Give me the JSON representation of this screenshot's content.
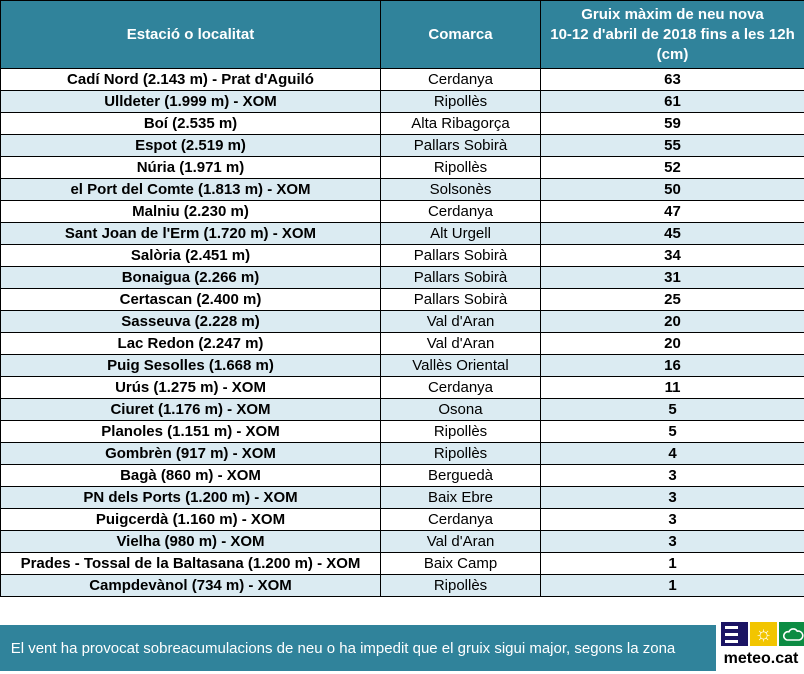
{
  "table": {
    "headers": [
      "Estació o localitat",
      "Comarca",
      "Gruix màxim de neu nova\n10-12 d'abril de 2018 fins a les 12h\n(cm)"
    ],
    "rows": [
      {
        "station": "Cadí Nord (2.143 m) - Prat d'Aguiló",
        "comarca": "Cerdanya",
        "value": "63"
      },
      {
        "station": "Ulldeter (1.999 m) - XOM",
        "comarca": "Ripollès",
        "value": "61"
      },
      {
        "station": "Boí (2.535 m)",
        "comarca": "Alta Ribagorça",
        "value": "59"
      },
      {
        "station": "Espot (2.519 m)",
        "comarca": "Pallars Sobirà",
        "value": "55"
      },
      {
        "station": "Núria (1.971 m)",
        "comarca": "Ripollès",
        "value": "52"
      },
      {
        "station": "el Port del Comte (1.813 m) - XOM",
        "comarca": "Solsonès",
        "value": "50"
      },
      {
        "station": "Malniu (2.230 m)",
        "comarca": "Cerdanya",
        "value": "47"
      },
      {
        "station": "Sant Joan de l'Erm (1.720 m) - XOM",
        "comarca": "Alt Urgell",
        "value": "45"
      },
      {
        "station": "Salòria (2.451 m)",
        "comarca": "Pallars Sobirà",
        "value": "34"
      },
      {
        "station": "Bonaigua (2.266 m)",
        "comarca": "Pallars Sobirà",
        "value": "31"
      },
      {
        "station": "Certascan (2.400 m)",
        "comarca": "Pallars Sobirà",
        "value": "25"
      },
      {
        "station": "Sasseuva (2.228 m)",
        "comarca": "Val d'Aran",
        "value": "20"
      },
      {
        "station": "Lac Redon (2.247 m)",
        "comarca": "Val d'Aran",
        "value": "20"
      },
      {
        "station": "Puig Sesolles (1.668 m)",
        "comarca": "Vallès Oriental",
        "value": "16"
      },
      {
        "station": "Urús (1.275 m) - XOM",
        "comarca": "Cerdanya",
        "value": "11"
      },
      {
        "station": "Ciuret (1.176 m) - XOM",
        "comarca": "Osona",
        "value": "5"
      },
      {
        "station": "Planoles (1.151 m) - XOM",
        "comarca": "Ripollès",
        "value": "5"
      },
      {
        "station": "Gombrèn (917 m) - XOM",
        "comarca": "Ripollès",
        "value": "4"
      },
      {
        "station": "Bagà (860 m) - XOM",
        "comarca": "Berguedà",
        "value": "3"
      },
      {
        "station": "PN dels Ports (1.200 m) - XOM",
        "comarca": "Baix Ebre",
        "value": "3"
      },
      {
        "station": "Puigcerdà (1.160 m) - XOM",
        "comarca": "Cerdanya",
        "value": "3"
      },
      {
        "station": "Vielha (980 m) - XOM",
        "comarca": "Val d'Aran",
        "value": "3"
      },
      {
        "station": "Prades - Tossal de la Baltasana (1.200 m) - XOM",
        "comarca": "Baix Camp",
        "value": "1"
      },
      {
        "station": "Campdevànol (734 m) - XOM",
        "comarca": "Ripollès",
        "value": "1"
      }
    ]
  },
  "footer": {
    "note": "El vent ha provocat sobreacumulacions de neu o ha impedit que el gruix sigui major, segons la zona",
    "logo": {
      "label": "meteo.cat",
      "icons": [
        "menu-lines-icon",
        "sun-icon",
        "cloud-icon"
      ],
      "sun_glyph": "☼"
    }
  },
  "colors": {
    "header_teal": "#30839B",
    "row_alt_blue": "#DBEBF2",
    "row_white": "#ffffff",
    "border_black": "#000000",
    "logo_navy": "#1B1464",
    "logo_yellow": "#F2C500",
    "logo_green": "#0C8C43"
  },
  "chart_data": {
    "type": "table",
    "title": "Gruix màxim de neu nova 10-12 d'abril de 2018 fins a les 12h (cm)",
    "columns": [
      "Estació o localitat",
      "Comarca",
      "Gruix màxim de neu nova 10-12 d'abril de 2018 fins a les 12h (cm)"
    ],
    "rows": [
      [
        "Cadí Nord (2.143 m) - Prat d'Aguiló",
        "Cerdanya",
        63
      ],
      [
        "Ulldeter (1.999 m) - XOM",
        "Ripollès",
        61
      ],
      [
        "Boí (2.535 m)",
        "Alta Ribagorça",
        59
      ],
      [
        "Espot (2.519 m)",
        "Pallars Sobirà",
        55
      ],
      [
        "Núria (1.971 m)",
        "Ripollès",
        52
      ],
      [
        "el Port del Comte (1.813 m) - XOM",
        "Solsonès",
        50
      ],
      [
        "Malniu (2.230 m)",
        "Cerdanya",
        47
      ],
      [
        "Sant Joan de l'Erm (1.720 m) - XOM",
        "Alt Urgell",
        45
      ],
      [
        "Salòria (2.451 m)",
        "Pallars Sobirà",
        34
      ],
      [
        "Bonaigua (2.266 m)",
        "Pallars Sobirà",
        31
      ],
      [
        "Certascan (2.400 m)",
        "Pallars Sobirà",
        25
      ],
      [
        "Sasseuva (2.228 m)",
        "Val d'Aran",
        20
      ],
      [
        "Lac Redon (2.247 m)",
        "Val d'Aran",
        20
      ],
      [
        "Puig Sesolles (1.668 m)",
        "Vallès Oriental",
        16
      ],
      [
        "Urús (1.275 m) - XOM",
        "Cerdanya",
        11
      ],
      [
        "Ciuret (1.176 m) - XOM",
        "Osona",
        5
      ],
      [
        "Planoles (1.151 m) - XOM",
        "Ripollès",
        5
      ],
      [
        "Gombrèn (917 m) - XOM",
        "Ripollès",
        4
      ],
      [
        "Bagà (860 m) - XOM",
        "Berguedà",
        3
      ],
      [
        "PN dels Ports (1.200 m) - XOM",
        "Baix Ebre",
        3
      ],
      [
        "Puigcerdà (1.160 m) - XOM",
        "Cerdanya",
        3
      ],
      [
        "Vielha (980 m) - XOM",
        "Val d'Aran",
        3
      ],
      [
        "Prades - Tossal de la Baltasana (1.200 m) - XOM",
        "Baix Camp",
        1
      ],
      [
        "Campdevànol (734 m) - XOM",
        "Ripollès",
        1
      ]
    ],
    "footnote": "El vent ha provocat sobreacumulacions de neu o ha impedit que el gruix sigui major, segons la zona"
  }
}
